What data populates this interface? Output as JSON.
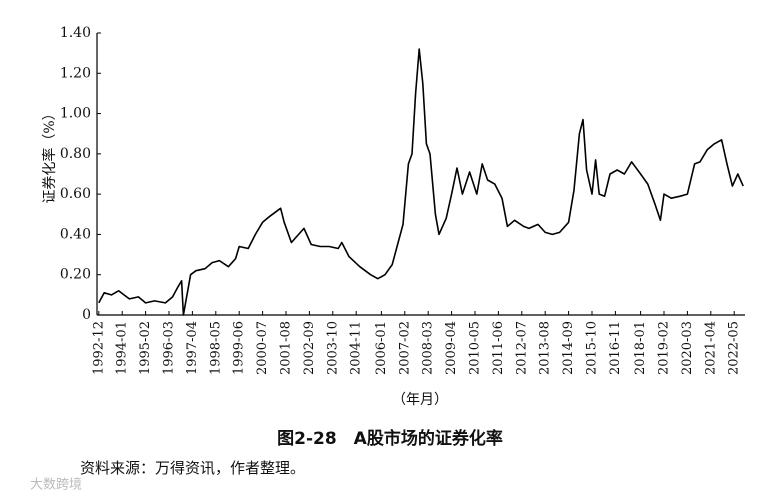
{
  "chart_data": {
    "type": "line",
    "title": "图2-28　A股市场的证券化率",
    "source": "资料来源：万得资讯，作者整理。",
    "watermark": "大数跨境",
    "y_label": "证券化率（%）",
    "x_label": "（年月）",
    "color": "#000000",
    "x": [
      "1992-12",
      "1993-03",
      "1993-07",
      "1993-11",
      "1994-02",
      "1994-05",
      "1994-10",
      "1995-02",
      "1995-07",
      "1996-01",
      "1996-05",
      "1996-08",
      "1996-10",
      "1996-11",
      "1997-03",
      "1997-06",
      "1997-11",
      "1998-03",
      "1998-07",
      "1998-12",
      "1999-04",
      "1999-06",
      "1999-11",
      "2000-03",
      "2000-07",
      "2000-11",
      "2001-02",
      "2001-05",
      "2001-07",
      "2001-11",
      "2002-04",
      "2002-06",
      "2002-10",
      "2003-03",
      "2003-08",
      "2004-01",
      "2004-03",
      "2004-07",
      "2005-01",
      "2005-07",
      "2005-11",
      "2006-03",
      "2006-07",
      "2006-10",
      "2007-01",
      "2007-04",
      "2007-06",
      "2007-08",
      "2007-10",
      "2007-12",
      "2008-02",
      "2008-04",
      "2008-07",
      "2008-09",
      "2009-01",
      "2009-04",
      "2009-07",
      "2009-10",
      "2010-02",
      "2010-06",
      "2010-09",
      "2010-12",
      "2011-04",
      "2011-08",
      "2011-11",
      "2012-03",
      "2012-08",
      "2012-11",
      "2013-04",
      "2013-08",
      "2013-12",
      "2014-04",
      "2014-09",
      "2014-12",
      "2015-03",
      "2015-05",
      "2015-07",
      "2015-10",
      "2015-12",
      "2016-02",
      "2016-05",
      "2016-08",
      "2016-12",
      "2017-04",
      "2017-08",
      "2018-01",
      "2018-05",
      "2018-09",
      "2018-12",
      "2019-02",
      "2019-06",
      "2019-11",
      "2020-03",
      "2020-07",
      "2020-10",
      "2021-02",
      "2021-06",
      "2021-10",
      "2022-01",
      "2022-04",
      "2022-07",
      "2022-10"
    ],
    "values": [
      0.06,
      0.11,
      0.1,
      0.12,
      0.1,
      0.08,
      0.09,
      0.06,
      0.07,
      0.06,
      0.09,
      0.14,
      0.17,
      0.0,
      0.2,
      0.22,
      0.23,
      0.26,
      0.27,
      0.24,
      0.28,
      0.34,
      0.33,
      0.4,
      0.46,
      0.49,
      0.51,
      0.53,
      0.46,
      0.36,
      0.41,
      0.43,
      0.35,
      0.34,
      0.34,
      0.33,
      0.36,
      0.29,
      0.24,
      0.2,
      0.18,
      0.2,
      0.25,
      0.35,
      0.45,
      0.75,
      0.8,
      1.1,
      1.32,
      1.15,
      0.85,
      0.8,
      0.5,
      0.4,
      0.48,
      0.6,
      0.73,
      0.6,
      0.71,
      0.6,
      0.75,
      0.67,
      0.65,
      0.58,
      0.44,
      0.47,
      0.44,
      0.43,
      0.45,
      0.41,
      0.4,
      0.41,
      0.46,
      0.62,
      0.9,
      0.97,
      0.72,
      0.6,
      0.77,
      0.6,
      0.59,
      0.7,
      0.72,
      0.7,
      0.76,
      0.7,
      0.65,
      0.55,
      0.47,
      0.6,
      0.58,
      0.59,
      0.6,
      0.75,
      0.76,
      0.82,
      0.85,
      0.87,
      0.75,
      0.64,
      0.7,
      0.64
    ],
    "xlim": [
      "1992-11",
      "2022-11"
    ],
    "xticks": [
      "1992-12",
      "1994-01",
      "1995-02",
      "1996-03",
      "1997-04",
      "1998-05",
      "1999-06",
      "2000-07",
      "2001-08",
      "2002-09",
      "2003-10",
      "2004-11",
      "2006-01",
      "2007-02",
      "2008-03",
      "2009-04",
      "2010-05",
      "2011-06",
      "2012-07",
      "2013-08",
      "2014-09",
      "2015-10",
      "2016-11",
      "2018-01",
      "2019-02",
      "2020-03",
      "2021-04",
      "2022-05"
    ],
    "ylim": [
      0,
      1.4
    ],
    "yticks": [
      0,
      {
        "value": 0.2,
        "label": "0.20"
      },
      {
        "value": 0.4,
        "label": "0.40"
      },
      {
        "value": 0.6,
        "label": "0.60"
      },
      {
        "value": 0.8,
        "label": "0.80"
      },
      {
        "value": 1.0,
        "label": "1.00"
      },
      {
        "value": 1.2,
        "label": "1.20"
      },
      {
        "value": 1.4,
        "label": "1.40"
      }
    ]
  }
}
